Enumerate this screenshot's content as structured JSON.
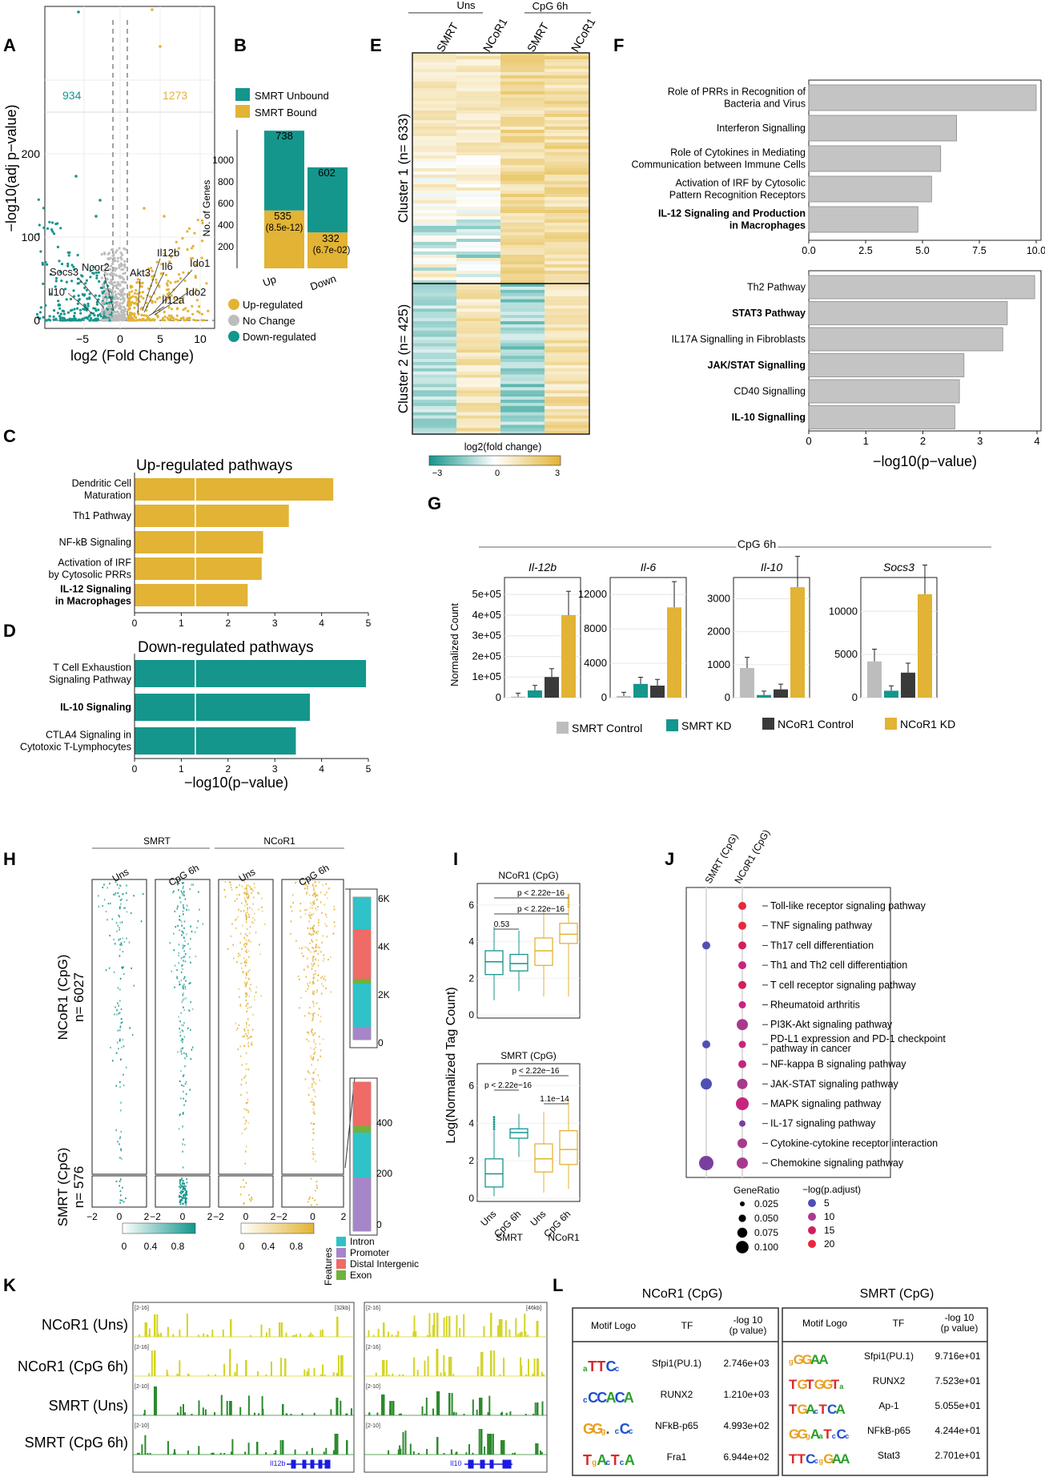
{
  "colors": {
    "gold": "#E2B334",
    "teal": "#14968C",
    "grey": "#BDBDBD",
    "dark": "#3A3A3A",
    "bargrey": "#C4C4C4",
    "red": "#E8283C",
    "purple": "#7A3F9E",
    "blue": "#4F50B5",
    "magenta": "#C8247E",
    "green": "#2D8A2D",
    "yellow": "#D4D428"
  },
  "panels": {
    "A": "A",
    "B": "B",
    "C": "C",
    "D": "D",
    "E": "E",
    "F": "F",
    "G": "G",
    "H": "H",
    "I": "I",
    "J": "J",
    "K": "K",
    "L": "L"
  },
  "panelA": {
    "ylabel": "−log10(adj p−value)",
    "xlabel": "log2 (Fold Change)",
    "count_down": "934",
    "count_up": "1273",
    "yticks": [
      "0",
      "100",
      "200"
    ],
    "xticks": [
      "−5",
      "0",
      "5",
      "10"
    ],
    "genes": [
      "Socs3",
      "Ncor2",
      "Il10",
      "Il12b",
      "Il6",
      "Akt3",
      "Ido1",
      "Ido2",
      "Il12a"
    ]
  },
  "panelB": {
    "legend": [
      "SMRT Unbound",
      "SMRT Bound"
    ],
    "ylabel": "No. of Genes",
    "yticks": [
      "200",
      "400",
      "600",
      "800",
      "1000"
    ],
    "xticks": [
      "Up",
      "Down"
    ],
    "labels": {
      "up_unbound": "738",
      "up_bound": "535",
      "up_p": "(8.5e-12)",
      "down_unbound": "602",
      "down_bound": "332",
      "down_p": "(6.7e-02)"
    },
    "legend2": [
      "Up-regulated",
      "No Change",
      "Down-regulated"
    ]
  },
  "chart_data": [
    {
      "type": "bar",
      "title": "Up-regulated pathways",
      "categories": [
        "Dendritic Cell Maturation",
        "Th1 Pathway",
        "NF-kB Signaling",
        "Activation of IRF by Cytosolic PRRs",
        "IL-12 Signaling and Production in Macrophages"
      ],
      "values": [
        4.25,
        3.3,
        2.75,
        2.72,
        2.42
      ],
      "xlim": [
        0,
        5
      ],
      "xlabel": "−log10(p−value)"
    },
    {
      "type": "bar",
      "title": "Down-regulated pathways",
      "categories": [
        "T Cell Exhaustion Signaling Pathway",
        "IL-10 Signaling",
        "CTLA4 Signaling in Cytotoxic T-Lymphocytes"
      ],
      "values": [
        4.95,
        3.75,
        3.45
      ],
      "xlim": [
        0,
        5
      ],
      "xlabel": "−log10(p−value)"
    },
    {
      "type": "bar",
      "title": "",
      "categories": [
        "Role of PRRs in Recognition of Bacteria and Virus",
        "Interferon Signalling",
        "Role of Cytokines in Mediating Communication between Immune Cells",
        "Activation of IRF by Cytosolic Pattern Recognition Receptors",
        "IL-12 Signaling and Production in Macrophages"
      ],
      "values": [
        10.0,
        6.5,
        5.8,
        5.4,
        4.8
      ],
      "xlim": [
        0,
        10
      ]
    },
    {
      "type": "bar",
      "title": "",
      "categories": [
        "Th2 Pathway",
        "STAT3 Pathway",
        "IL17A Signalling in Fibroblasts",
        "JAK/STAT Signalling",
        "CD40 Signalling",
        "IL-10 Signalling"
      ],
      "values": [
        4.95,
        4.35,
        4.25,
        3.4,
        3.3,
        3.2
      ],
      "xlim": [
        0,
        5
      ],
      "xlabel": "−log10(p−value)"
    },
    {
      "type": "bar",
      "title": "Il-12b",
      "series": [
        {
          "name": "SMRT Control",
          "values": [
            5000
          ]
        },
        {
          "name": "SMRT KD",
          "values": [
            35000
          ]
        },
        {
          "name": "NCoR1 Control",
          "values": [
            100000
          ]
        },
        {
          "name": "NCoR1 KD",
          "values": [
            400000
          ]
        }
      ],
      "ylim": [
        0,
        500000
      ]
    },
    {
      "type": "bar",
      "title": "Il-6",
      "series": [
        {
          "name": "SMRT Control",
          "values": [
            200
          ]
        },
        {
          "name": "SMRT KD",
          "values": [
            1600
          ]
        },
        {
          "name": "NCoR1 Control",
          "values": [
            1400
          ]
        },
        {
          "name": "NCoR1 KD",
          "values": [
            10500
          ]
        }
      ],
      "ylim": [
        0,
        12000
      ]
    },
    {
      "type": "bar",
      "title": "Il-10",
      "series": [
        {
          "name": "SMRT Control",
          "values": [
            900
          ]
        },
        {
          "name": "SMRT KD",
          "values": [
            80
          ]
        },
        {
          "name": "NCoR1 Control",
          "values": [
            250
          ]
        },
        {
          "name": "NCoR1 KD",
          "values": [
            3350
          ]
        }
      ],
      "ylim": [
        0,
        3400
      ]
    },
    {
      "type": "bar",
      "title": "Socs3",
      "series": [
        {
          "name": "SMRT Control",
          "values": [
            4200
          ]
        },
        {
          "name": "SMRT KD",
          "values": [
            800
          ]
        },
        {
          "name": "NCoR1 Control",
          "values": [
            2900
          ]
        },
        {
          "name": "NCoR1 KD",
          "values": [
            12000
          ]
        }
      ],
      "ylim": [
        0,
        13000
      ]
    }
  ],
  "panelC": {
    "title": "Up-regulated pathways",
    "labels": [
      [
        "Dendritic Cell",
        "Maturation"
      ],
      [
        "Th1 Pathway"
      ],
      [
        "NF-kB Signaling"
      ],
      [
        "Activation of IRF",
        "by Cytosolic PRRs"
      ],
      [
        "IL-12 Signaling",
        "in Macrophages"
      ]
    ],
    "bold": [
      false,
      false,
      false,
      false,
      true
    ],
    "xticks": [
      "0",
      "1",
      "2",
      "3",
      "4",
      "5"
    ]
  },
  "panelD": {
    "title": "Down-regulated pathways",
    "labels": [
      [
        "T Cell Exhaustion",
        "Signaling Pathway"
      ],
      [
        "IL-10 Signaling"
      ],
      [
        "CTLA4 Signaling in",
        "Cytotoxic T-Lymphocytes"
      ]
    ],
    "bold": [
      false,
      true,
      false
    ],
    "xticks": [
      "0",
      "1",
      "2",
      "3",
      "4",
      "5"
    ],
    "xlabel": "−log10(p−value)"
  },
  "panelE": {
    "groups": [
      "Uns",
      "CpG 6h"
    ],
    "cols": [
      "SMRT",
      "NCoR1",
      "SMRT",
      "NCoR1"
    ],
    "cluster1": "Cluster 1 (n= 633)",
    "cluster2": "Cluster 2 (n= 425)",
    "scale_title": "log2(fold change)",
    "scale_ticks": [
      "−3",
      "0",
      "3"
    ]
  },
  "panelF": {
    "labels1": [
      [
        "Role of PRRs in Recognition of",
        "Bacteria and Virus"
      ],
      [
        "Interferon Signalling"
      ],
      [
        "Role of Cytokines in Mediating",
        "Communication between Immune Cells"
      ],
      [
        "Activation of IRF by Cytosolic",
        "Pattern Recognition Receptors"
      ],
      [
        "IL-12 Signaling and Production",
        "in Macrophages"
      ]
    ],
    "bold1": [
      false,
      false,
      false,
      false,
      true
    ],
    "xticks1": [
      "0.0",
      "2.5",
      "5.0",
      "7.5",
      "10.0"
    ],
    "labels2": [
      "Th2 Pathway",
      "STAT3 Pathway",
      "IL17A Signalling in Fibroblasts",
      "JAK/STAT Signalling",
      "CD40 Signalling",
      "IL-10 Signalling"
    ],
    "bold2": [
      false,
      true,
      false,
      true,
      false,
      true
    ],
    "xticks2": [
      "0",
      "1",
      "2",
      "3",
      "4"
    ],
    "xlabel": "−log10(p−value)"
  },
  "panelG": {
    "header": "CpG 6h",
    "ylabel": "Normalized Count",
    "titles": [
      "Il-12b",
      "Il-6",
      "Il-10",
      "Socs3"
    ],
    "yticks": [
      [
        "0",
        "1e+05",
        "2e+05",
        "3e+05",
        "4e+05",
        "5e+05"
      ],
      [
        "0",
        "4000",
        "8000",
        "12000"
      ],
      [
        "0",
        "1000",
        "2000",
        "3000"
      ],
      [
        "0",
        "5000",
        "10000"
      ]
    ],
    "legend": [
      "SMRT Control",
      "SMRT KD",
      "NCoR1 Control",
      "NCoR1 KD"
    ]
  },
  "panelH": {
    "groups": [
      "SMRT",
      "NCoR1"
    ],
    "cols": [
      "Uns",
      "CpG 6h",
      "Uns",
      "CpG 6h"
    ],
    "row1": [
      "NCoR1 (CpG)",
      "n= 6027"
    ],
    "row2": [
      "SMRT (CpG)",
      "n= 576"
    ],
    "xticks": [
      "−2",
      "0",
      "2"
    ],
    "bar_ticks1": [
      "6K",
      "4K",
      "2K",
      "0"
    ],
    "bar_ticks2": [
      "400",
      "200",
      "0"
    ],
    "scale_ticks": [
      "0",
      "0.4",
      "0.8"
    ],
    "features_title": "Features",
    "features": [
      "Intron",
      "Promoter",
      "Distal Intergenic",
      "Exon"
    ]
  },
  "panelI": {
    "ylabel": "Log(Normalized Tag Count)",
    "title1": "NCoR1 (CpG)",
    "title2": "SMRT (CpG)",
    "p1": [
      "p < 2.22e−16",
      "p < 2.22e−16",
      "0.53"
    ],
    "p2": [
      "p < 2.22e−16",
      "p < 2.22e−16",
      "1.1e−14"
    ],
    "yticks": [
      "0",
      "2",
      "4",
      "6"
    ],
    "xticks": [
      "Uns",
      "CpG 6h",
      "Uns",
      "CpG 6h"
    ],
    "groups": [
      "SMRT",
      "NCoR1"
    ]
  },
  "panelJ": {
    "cols": [
      "SMRT (CpG)",
      "NCoR1 (CpG)"
    ],
    "pathways": [
      "Toll-like receptor signaling pathway",
      "TNF signaling pathway",
      "Th17 cell differentiation",
      "Th1 and Th2 cell differentiation",
      "T cell receptor signaling pathway",
      "Rheumatoid arthritis",
      "PI3K-Akt signaling pathway",
      "PD-L1 expression and PD-1 checkpoint pathway in cancer",
      "NF-kappa B signaling pathway",
      "JAK-STAT signaling pathway",
      "MAPK signaling pathway",
      "IL-17 signaling pathway",
      "Cytokine-cytokine receptor interaction",
      "Chemokine signaling pathway"
    ],
    "ratio_title": "GeneRatio",
    "ratios": [
      "0.025",
      "0.050",
      "0.075",
      "0.100"
    ],
    "padj_title": "−log(p.adjust)",
    "padj": [
      "5",
      "10",
      "15",
      "20"
    ]
  },
  "panelK": {
    "tracks": [
      "NCoR1 (Uns)",
      "NCoR1 (CpG 6h)",
      "SMRT (Uns)",
      "SMRT (CpG 6h)"
    ],
    "ranges": [
      "[2-16]",
      "[2-16]",
      "[2-10]",
      "[2-10]"
    ],
    "size1": "[32kb]",
    "size2": "[46kb]",
    "gene1": "Il12b",
    "gene2": "Il10"
  },
  "panelL": {
    "title1": "NCoR1 (CpG)",
    "title2": "SMRT (CpG)",
    "headers": [
      "Motif Logo",
      "TF",
      "-log 10",
      "(p value)"
    ],
    "tf1": [
      "Sfpi1(PU.1)",
      "RUNX2",
      "NFkB-p65",
      "Fra1"
    ],
    "p1": [
      "2.746e+03",
      "1.210e+03",
      "4.993e+02",
      "6.944e+02"
    ],
    "tf2": [
      "Sfpi1(PU.1)",
      "RUNX2",
      "Ap-1",
      "NFkB-p65",
      "Stat3"
    ],
    "p2": [
      "9.716e+01",
      "7.523e+01",
      "5.055e+01",
      "4.244e+01",
      "2.701e+01"
    ]
  }
}
